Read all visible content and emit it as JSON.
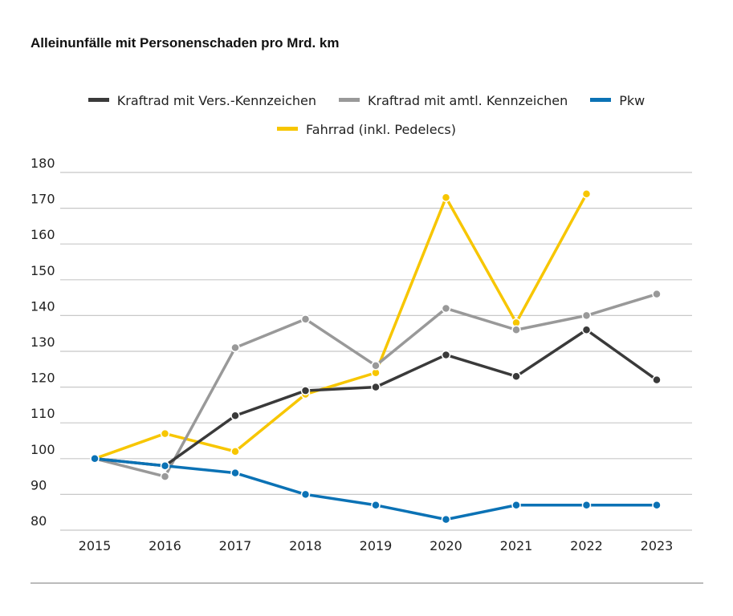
{
  "chart_data": {
    "type": "line",
    "title": "Alleinunfälle mit Personenschaden pro Mrd. km",
    "xlabel": "",
    "ylabel": "",
    "categories": [
      "2015",
      "2016",
      "2017",
      "2018",
      "2019",
      "2020",
      "2021",
      "2022",
      "2023"
    ],
    "yticks": [
      "80",
      "90",
      "100",
      "110",
      "120",
      "130",
      "140",
      "150",
      "160",
      "170",
      "180"
    ],
    "ylim": [
      80,
      180
    ],
    "grid": true,
    "legend_position": "top-center",
    "series": [
      {
        "name": "Kraftrad mit Vers.-Kennzeichen",
        "color": "#3a3a3a",
        "values": [
          100,
          98,
          112,
          119,
          120,
          129,
          123,
          136,
          122
        ]
      },
      {
        "name": "Kraftrad mit amtl. Kennzeichen",
        "color": "#999999",
        "values": [
          100,
          95,
          131,
          139,
          126,
          142,
          136,
          140,
          146
        ]
      },
      {
        "name": "Pkw",
        "color": "#0b72b5",
        "values": [
          100,
          98,
          96,
          90,
          87,
          83,
          87,
          87,
          87
        ]
      },
      {
        "name": "Fahrrad (inkl. Pedelecs)",
        "color": "#f7c600",
        "values": [
          100,
          107,
          102,
          118,
          124,
          173,
          138,
          174,
          null
        ]
      }
    ]
  }
}
